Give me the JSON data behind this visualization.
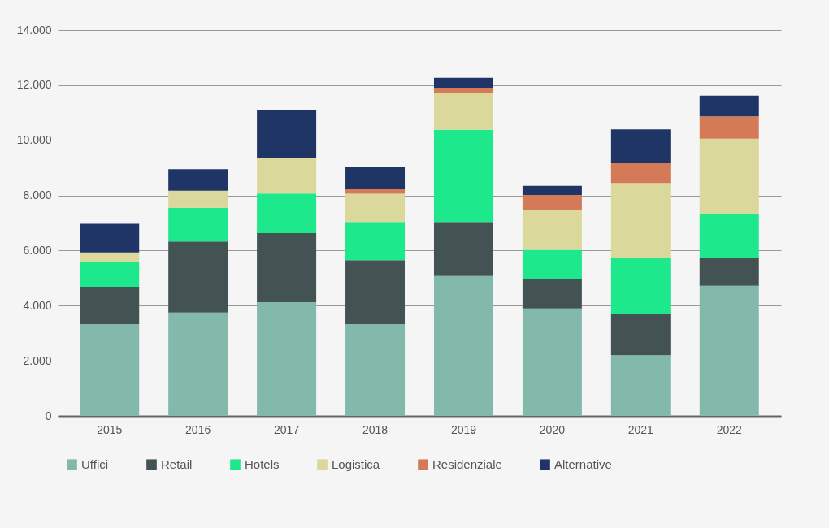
{
  "chart_data": {
    "type": "bar",
    "stacked": true,
    "categories": [
      "2015",
      "2016",
      "2017",
      "2018",
      "2019",
      "2020",
      "2021",
      "2022"
    ],
    "series": [
      {
        "name": "Uffici",
        "color": "#82b9aa",
        "values": [
          3330,
          3750,
          4130,
          3330,
          5080,
          3900,
          2200,
          4720
        ]
      },
      {
        "name": "Retail",
        "color": "#435353",
        "values": [
          1360,
          2580,
          2500,
          2320,
          1960,
          1080,
          1500,
          1000
        ]
      },
      {
        "name": "Hotels",
        "color": "#1de88c",
        "values": [
          880,
          1220,
          1440,
          1390,
          3340,
          1050,
          2040,
          1610
        ]
      },
      {
        "name": "Logistica",
        "color": "#dad89b",
        "values": [
          360,
          620,
          1280,
          1020,
          1350,
          1430,
          2710,
          2730
        ]
      },
      {
        "name": "Residenziale",
        "color": "#d47a57",
        "values": [
          0,
          0,
          0,
          160,
          180,
          560,
          720,
          810
        ]
      },
      {
        "name": "Alternative",
        "color": "#1f3566",
        "values": [
          1040,
          780,
          1740,
          820,
          360,
          330,
          1230,
          750
        ]
      }
    ],
    "ylim": [
      0,
      14000
    ],
    "yticks": [
      0,
      {
        "value": 2000,
        "label": "2.000"
      },
      {
        "value": 4000,
        "label": "4.000"
      },
      {
        "value": 6000,
        "label": "6.000"
      },
      {
        "value": 8000,
        "label": "8.000"
      },
      {
        "value": 10000,
        "label": "10.000"
      },
      {
        "value": 12000,
        "label": "12.000"
      },
      {
        "value": 14000,
        "label": "14.000"
      }
    ],
    "grid": "y",
    "legend": "bottom"
  }
}
